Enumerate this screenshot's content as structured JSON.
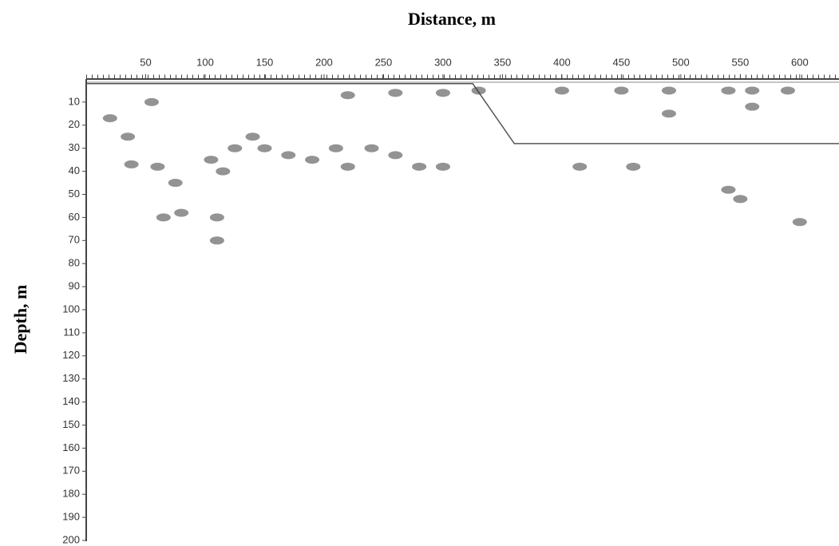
{
  "chart_data": {
    "type": "line",
    "title": "Distance, m",
    "y_label": "Depth, m",
    "xlim": [
      0,
      633
    ],
    "xticks": [
      50,
      100,
      150,
      200,
      250,
      300,
      350,
      400,
      450,
      500,
      550,
      600
    ],
    "ylim": [
      0,
      200
    ],
    "yticks": [
      10,
      20,
      30,
      40,
      50,
      60,
      70,
      80,
      90,
      100,
      110,
      120,
      130,
      140,
      150,
      160,
      170,
      180,
      190,
      200
    ],
    "y_inverted": true,
    "x_axis_position": "top",
    "series": [
      {
        "type": "line",
        "color": "#555555",
        "x": [
          0,
          325,
          360,
          633
        ],
        "values": [
          2,
          2,
          28,
          28
        ]
      },
      {
        "type": "scatter",
        "color": "#3a3a3a",
        "x": [
          20,
          35,
          38,
          55,
          60,
          65,
          75,
          80,
          105,
          110,
          110,
          115,
          125,
          140,
          150,
          170,
          190,
          210,
          220,
          240,
          260,
          280,
          300,
          220,
          260,
          300,
          330,
          400,
          415,
          450,
          460,
          490,
          490,
          540,
          560,
          560,
          590,
          540,
          550,
          600
        ],
        "values": [
          17,
          25,
          37,
          10,
          38,
          60,
          45,
          58,
          35,
          60,
          70,
          40,
          30,
          25,
          30,
          33,
          35,
          30,
          38,
          30,
          33,
          38,
          38,
          7,
          6,
          6,
          5,
          5,
          38,
          5,
          38,
          5,
          15,
          5,
          5,
          12,
          5,
          48,
          52,
          62
        ]
      }
    ]
  }
}
